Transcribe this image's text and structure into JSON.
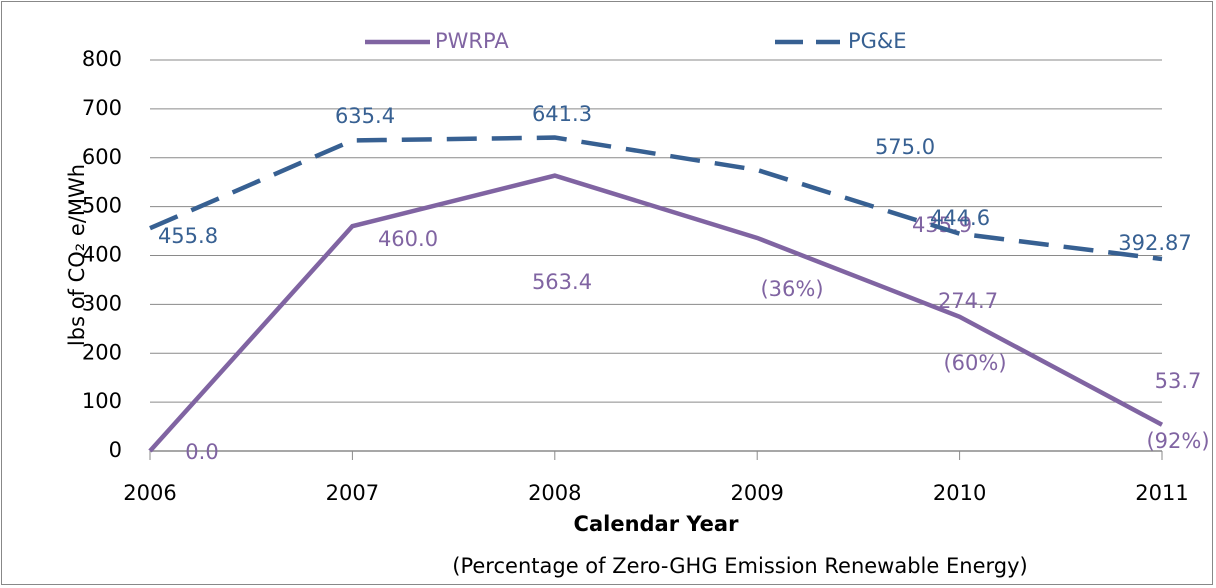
{
  "chart_data": {
    "type": "line",
    "categories": [
      "2006",
      "2007",
      "2008",
      "2009",
      "2010",
      "2011"
    ],
    "series": [
      {
        "name": "PWRPA",
        "color": "#8064a2",
        "dashed": false,
        "values": [
          0,
          460,
          563.4,
          435.9,
          274.7,
          53.7
        ],
        "value_labels": [
          "0.0",
          "460.0",
          "563.4",
          "435.9",
          "274.7",
          "53.7"
        ]
      },
      {
        "name": "PG&E",
        "color": "#376092",
        "dashed": true,
        "values": [
          455.8,
          635.4,
          641.3,
          575,
          444.6,
          392.87
        ],
        "value_labels": [
          "455.8",
          "635.4",
          "641.3",
          "575.0",
          "444.6",
          "392.87"
        ]
      }
    ],
    "annotations": [
      "(36%)",
      "(60%)",
      "(92%)"
    ],
    "ylabel": "lbs of CO₂ e/MWh",
    "xlabel": "Calendar Year",
    "xlabel_note": "(Percentage of Zero-GHG Emission Renewable Energy)",
    "ylim": [
      0,
      800
    ],
    "yticks": [
      0,
      100,
      200,
      300,
      400,
      500,
      600,
      700,
      800
    ],
    "grid": true,
    "legend": "top"
  }
}
